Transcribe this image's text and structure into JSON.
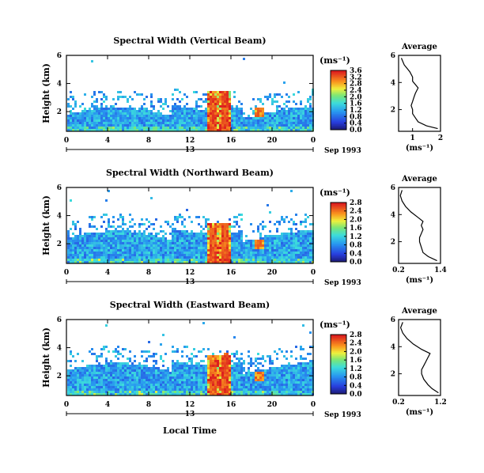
{
  "chart_data": [
    {
      "type": "heatmap",
      "title": "Spectral Width (Vertical Beam)",
      "ylabel": "Height (km)",
      "x_ticks": [
        "0",
        "4",
        "8",
        "12",
        "16",
        "20",
        "0"
      ],
      "y_ticks": [
        "6",
        "4",
        "2"
      ],
      "xlim": [
        0,
        24
      ],
      "ylim": [
        0.6,
        6
      ],
      "date_marker": "13",
      "date_label": "Sep 1993",
      "colorbar": {
        "unit": "(ms⁻¹)",
        "ticks": [
          "3.6",
          "3.2",
          "2.8",
          "2.4",
          "2.0",
          "1.6",
          "1.2",
          "0.8",
          "0.4",
          "0.0"
        ],
        "range": [
          0,
          3.6
        ]
      },
      "profile": {
        "title": "Average",
        "xlabel": "(ms⁻¹)",
        "x_ticks": [
          "1",
          "2"
        ],
        "y_ticks": [
          "6",
          "4",
          "2"
        ],
        "xlim": [
          0.5,
          2
        ],
        "ylim": [
          0.4,
          6
        ],
        "x": [
          0.6,
          0.7,
          0.9,
          1.0,
          1.0,
          1.2,
          1.1,
          1.05,
          1.0,
          0.95,
          1.0,
          1.0,
          1.1,
          1.2,
          1.5,
          1.9
        ],
        "y": [
          5.8,
          5.3,
          4.8,
          4.4,
          4.1,
          3.6,
          3.2,
          2.9,
          2.6,
          2.3,
          2.0,
          1.7,
          1.4,
          1.1,
          0.8,
          0.6
        ]
      }
    },
    {
      "type": "heatmap",
      "title": "Spectral Width (Northward Beam)",
      "ylabel": "Height (km)",
      "x_ticks": [
        "0",
        "4",
        "8",
        "12",
        "16",
        "20",
        "0"
      ],
      "y_ticks": [
        "6",
        "4",
        "2"
      ],
      "xlim": [
        0,
        24
      ],
      "ylim": [
        0.6,
        6
      ],
      "date_marker": "13",
      "date_label": "Sep 1993",
      "colorbar": {
        "unit": "(ms⁻¹)",
        "ticks": [
          "2.8",
          "2.4",
          "2.0",
          "1.6",
          "1.2",
          "0.8",
          "0.4",
          "0.0"
        ],
        "range": [
          0,
          2.8
        ]
      },
      "profile": {
        "title": "Average",
        "xlabel": "(ms⁻¹)",
        "x_ticks": [
          "0.2",
          "1.4"
        ],
        "y_ticks": [
          "6",
          "4",
          "2"
        ],
        "xlim": [
          0.2,
          1.4
        ],
        "ylim": [
          0.4,
          6
        ],
        "x": [
          0.3,
          0.25,
          0.3,
          0.4,
          0.55,
          0.75,
          0.9,
          0.85,
          0.9,
          0.85,
          0.8,
          0.8,
          0.85,
          0.9,
          1.05,
          1.3
        ],
        "y": [
          5.8,
          5.4,
          5.0,
          4.6,
          4.2,
          3.8,
          3.5,
          3.2,
          2.9,
          2.6,
          2.3,
          2.0,
          1.6,
          1.2,
          0.9,
          0.6
        ]
      }
    },
    {
      "type": "heatmap",
      "title": "Spectral Width (Eastward Beam)",
      "ylabel": "Height (km)",
      "xlabel": "Local Time",
      "x_ticks": [
        "0",
        "4",
        "8",
        "12",
        "16",
        "20",
        "0"
      ],
      "y_ticks": [
        "6",
        "4",
        "2"
      ],
      "xlim": [
        0,
        24
      ],
      "ylim": [
        0.6,
        6
      ],
      "date_marker": "13",
      "date_label": "Sep 1993",
      "colorbar": {
        "unit": "(ms⁻¹)",
        "ticks": [
          "2.8",
          "2.4",
          "2.0",
          "1.6",
          "1.2",
          "0.8",
          "0.4",
          "0.0"
        ],
        "range": [
          0,
          2.8
        ]
      },
      "profile": {
        "title": "Average",
        "xlabel": "(ms⁻¹)",
        "x_ticks": [
          "0.2",
          "1.2"
        ],
        "y_ticks": [
          "6",
          "4",
          "2"
        ],
        "xlim": [
          0.2,
          1.2
        ],
        "ylim": [
          0.4,
          6
        ],
        "x": [
          0.3,
          0.25,
          0.3,
          0.4,
          0.55,
          0.75,
          0.95,
          0.9,
          0.85,
          0.8,
          0.75,
          0.75,
          0.8,
          0.9,
          1.0,
          1.15
        ],
        "y": [
          5.8,
          5.4,
          5.0,
          4.6,
          4.2,
          3.8,
          3.5,
          3.2,
          2.9,
          2.6,
          2.3,
          2.0,
          1.6,
          1.2,
          0.9,
          0.6
        ]
      }
    }
  ]
}
